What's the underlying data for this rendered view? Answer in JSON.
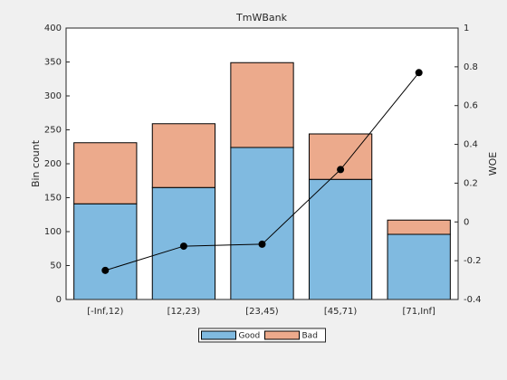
{
  "chart_data": {
    "type": "bar",
    "stacked": true,
    "title": "TmWBank",
    "ylabel": "Bin count",
    "y2label": "WOE",
    "categories": [
      "[-Inf,12)",
      "[12,23)",
      "[23,45)",
      "[45,71)",
      "[71,Inf]"
    ],
    "series": [
      {
        "name": "Good",
        "color": "#80bae0",
        "values": [
          141,
          165,
          224,
          177,
          96
        ]
      },
      {
        "name": "Bad",
        "color": "#ecaa8c",
        "values": [
          90,
          94,
          125,
          67,
          21
        ]
      }
    ],
    "line": {
      "axis": "y2",
      "color": "#000000",
      "values": [
        -0.25,
        -0.125,
        -0.115,
        0.27,
        0.77
      ]
    },
    "ylim": [
      0,
      400
    ],
    "yticks": [
      0,
      50,
      100,
      150,
      200,
      250,
      300,
      350,
      400
    ],
    "y2lim": [
      -0.4,
      1
    ],
    "y2ticks": [
      -0.4,
      -0.2,
      0,
      0.2,
      0.4,
      0.6,
      0.8,
      1
    ],
    "legend": "bottom"
  }
}
